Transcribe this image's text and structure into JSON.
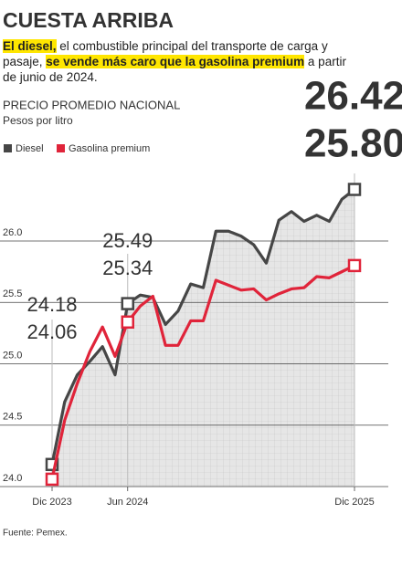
{
  "chart_data": {
    "type": "line",
    "title": "CUESTA ARRIBA",
    "subtitle": [
      {
        "text": "El diesel,",
        "highlight": true
      },
      {
        "text": " el combustible principal del transporte de carga y pasaje, ",
        "highlight": false
      },
      {
        "text": "se vende más caro que la gasolina premium",
        "highlight": true
      },
      {
        "text": " a partir de junio de 2024.",
        "highlight": false
      }
    ],
    "chart_title": "PRECIO PROMEDIO NACIONAL",
    "y_label": "Pesos por litro",
    "source": "Fuente: Pemex.",
    "categories": [
      "Dic 2023",
      null,
      null,
      null,
      null,
      null,
      "Jun 2024",
      null,
      null,
      null,
      null,
      null,
      null,
      null,
      null,
      null,
      null,
      null,
      null,
      null,
      null,
      null,
      null,
      null,
      "Dic 2025"
    ],
    "series": [
      {
        "name": "Diesel",
        "color": "#464646",
        "values": [
          24.18,
          24.69,
          24.91,
          25.02,
          25.14,
          24.91,
          25.49,
          25.56,
          25.54,
          25.32,
          25.43,
          25.65,
          25.62,
          26.08,
          26.08,
          26.04,
          25.97,
          25.82,
          26.17,
          26.24,
          26.16,
          26.21,
          26.16,
          26.34,
          26.42
        ],
        "value_labels": [
          "24.18",
          null,
          null,
          null,
          null,
          null,
          "25.49",
          null,
          null,
          null,
          null,
          null,
          null,
          null,
          null,
          null,
          null,
          null,
          null,
          null,
          null,
          null,
          null,
          null,
          "26.42"
        ]
      },
      {
        "name": "Gasolina premium",
        "color": "#e0243a",
        "values": [
          24.06,
          24.54,
          24.84,
          25.1,
          25.3,
          25.06,
          25.34,
          25.47,
          25.55,
          25.15,
          25.15,
          25.35,
          25.35,
          25.68,
          25.64,
          25.6,
          25.61,
          25.52,
          25.57,
          25.61,
          25.62,
          25.71,
          25.7,
          25.75,
          25.8
        ],
        "value_labels": [
          "24.06",
          null,
          null,
          null,
          null,
          null,
          "25.34",
          null,
          null,
          null,
          null,
          null,
          null,
          null,
          null,
          null,
          null,
          null,
          null,
          null,
          null,
          null,
          null,
          null,
          "25.80"
        ]
      }
    ],
    "ylim": [
      24,
      26.5
    ],
    "yticks": [
      {
        "value": 24,
        "label": "24.0"
      },
      24.5,
      {
        "value": 25,
        "label": "25.0"
      },
      25.5,
      {
        "value": 26,
        "label": "26.0"
      }
    ],
    "grid": true
  }
}
